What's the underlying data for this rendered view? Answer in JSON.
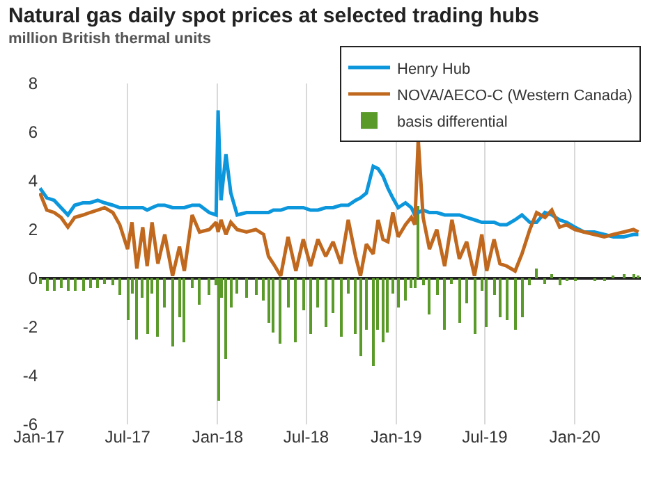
{
  "chart_data": {
    "type": "line",
    "title": "Natural gas daily spot prices at selected trading hubs",
    "subtitle": "million British thermal units",
    "x": [
      "2017-01-03",
      "2017-01-17",
      "2017-02-01",
      "2017-02-15",
      "2017-03-01",
      "2017-03-15",
      "2017-04-01",
      "2017-04-15",
      "2017-05-01",
      "2017-05-15",
      "2017-06-01",
      "2017-06-15",
      "2017-07-01",
      "2017-07-10",
      "2017-07-20",
      "2017-08-01",
      "2017-08-10",
      "2017-08-20",
      "2017-09-01",
      "2017-09-15",
      "2017-10-01",
      "2017-10-15",
      "2017-10-25",
      "2017-11-10",
      "2017-11-25",
      "2017-12-15",
      "2017-12-29",
      "2018-01-02",
      "2018-01-08",
      "2018-01-18",
      "2018-01-28",
      "2018-02-10",
      "2018-03-01",
      "2018-03-20",
      "2018-04-05",
      "2018-04-15",
      "2018-04-25",
      "2018-05-10",
      "2018-05-25",
      "2018-06-10",
      "2018-06-25",
      "2018-07-10",
      "2018-07-25",
      "2018-08-10",
      "2018-08-25",
      "2018-09-10",
      "2018-09-25",
      "2018-10-10",
      "2018-10-20",
      "2018-11-01",
      "2018-11-15",
      "2018-11-25",
      "2018-12-05",
      "2018-12-15",
      "2018-12-25",
      "2019-01-05",
      "2019-01-20",
      "2019-02-01",
      "2019-02-08",
      "2019-02-15",
      "2019-02-25",
      "2019-03-10",
      "2019-03-25",
      "2019-04-10",
      "2019-04-25",
      "2019-05-10",
      "2019-05-25",
      "2019-06-10",
      "2019-06-25",
      "2019-07-05",
      "2019-07-20",
      "2019-08-01",
      "2019-08-15",
      "2019-09-01",
      "2019-09-15",
      "2019-10-01",
      "2019-10-15",
      "2019-11-01",
      "2019-11-15",
      "2019-12-01",
      "2019-12-15",
      "2020-01-01",
      "2020-01-20",
      "2020-02-10",
      "2020-03-01",
      "2020-03-20",
      "2020-04-10",
      "2020-04-30",
      "2020-05-10"
    ],
    "series": [
      {
        "name": "Henry Hub",
        "color": "#0c96dc",
        "values": [
          3.7,
          3.3,
          3.2,
          2.9,
          2.6,
          3.0,
          3.1,
          3.1,
          3.2,
          3.1,
          3.0,
          2.9,
          2.9,
          2.9,
          2.9,
          2.9,
          2.8,
          2.9,
          3.0,
          3.0,
          2.9,
          2.9,
          2.9,
          3.0,
          3.0,
          2.7,
          2.6,
          6.9,
          3.2,
          5.1,
          3.5,
          2.6,
          2.7,
          2.7,
          2.7,
          2.7,
          2.8,
          2.8,
          2.9,
          2.9,
          2.9,
          2.8,
          2.8,
          2.9,
          2.9,
          3.0,
          3.0,
          3.2,
          3.3,
          3.5,
          4.6,
          4.5,
          4.2,
          3.7,
          3.3,
          2.9,
          3.1,
          2.9,
          2.6,
          2.7,
          2.8,
          2.7,
          2.7,
          2.6,
          2.6,
          2.6,
          2.5,
          2.4,
          2.3,
          2.3,
          2.3,
          2.2,
          2.2,
          2.4,
          2.6,
          2.3,
          2.3,
          2.7,
          2.6,
          2.4,
          2.3,
          2.1,
          1.9,
          1.9,
          1.8,
          1.7,
          1.7,
          1.8,
          1.8
        ]
      },
      {
        "name": "NOVA/AECO-C (Western Canada)",
        "color": "#c0691e",
        "values": [
          3.5,
          2.8,
          2.7,
          2.5,
          2.1,
          2.5,
          2.6,
          2.7,
          2.8,
          2.9,
          2.7,
          2.2,
          1.2,
          2.3,
          0.4,
          2.1,
          0.5,
          2.3,
          0.6,
          1.8,
          0.1,
          1.3,
          0.3,
          2.6,
          1.9,
          2.0,
          2.3,
          1.9,
          2.4,
          1.8,
          2.3,
          2.0,
          1.9,
          2.0,
          1.8,
          0.9,
          0.6,
          0.1,
          1.7,
          0.3,
          1.6,
          0.5,
          1.6,
          0.9,
          1.5,
          0.6,
          2.4,
          0.9,
          0.1,
          1.4,
          1.0,
          2.4,
          1.6,
          1.5,
          2.7,
          1.7,
          2.2,
          2.5,
          2.2,
          5.7,
          2.5,
          1.2,
          2.0,
          0.5,
          2.4,
          0.8,
          1.5,
          0.1,
          1.8,
          0.3,
          1.6,
          0.6,
          0.5,
          0.3,
          1.0,
          2.0,
          2.7,
          2.5,
          2.8,
          2.1,
          2.2,
          2.0,
          1.9,
          1.8,
          1.7,
          1.8,
          1.9,
          2.0,
          1.9
        ]
      },
      {
        "name": "basis differential",
        "type": "bar",
        "color": "#5a9a28",
        "values": [
          -0.2,
          -0.5,
          -0.5,
          -0.4,
          -0.5,
          -0.5,
          -0.5,
          -0.4,
          -0.4,
          -0.2,
          -0.3,
          -0.7,
          -1.7,
          -0.6,
          -2.5,
          -0.8,
          -2.3,
          -0.6,
          -2.4,
          -1.2,
          -2.8,
          -1.6,
          -2.6,
          -0.4,
          -1.1,
          -0.7,
          -0.3,
          -5.0,
          -0.8,
          -3.3,
          -1.2,
          -0.6,
          -0.8,
          -0.7,
          -0.9,
          -1.8,
          -2.2,
          -2.7,
          -1.2,
          -2.6,
          -1.3,
          -2.3,
          -1.2,
          -2.0,
          -1.4,
          -2.4,
          -0.6,
          -2.3,
          -3.2,
          -2.1,
          -3.6,
          -2.1,
          -2.6,
          -2.2,
          -0.6,
          -1.2,
          -0.9,
          -0.4,
          -0.4,
          3.0,
          -0.3,
          -1.5,
          -0.7,
          -2.1,
          -0.2,
          -1.8,
          -1.0,
          -2.3,
          -0.5,
          -2.0,
          -0.7,
          -1.6,
          -1.7,
          -2.1,
          -1.6,
          -0.3,
          0.4,
          -0.2,
          0.2,
          -0.3,
          -0.1,
          -0.1,
          0.0,
          -0.1,
          -0.1,
          0.1,
          0.2,
          0.2,
          0.1
        ]
      }
    ],
    "xlim": [
      "2017-01-01",
      "2020-05-15"
    ],
    "xticks": [
      {
        "value": "2017-01-01",
        "label": "Jan-17"
      },
      {
        "value": "2017-07-01",
        "label": "Jul-17"
      },
      {
        "value": "2018-01-01",
        "label": "Jan-18"
      },
      {
        "value": "2018-07-01",
        "label": "Jul-18"
      },
      {
        "value": "2019-01-01",
        "label": "Jan-19"
      },
      {
        "value": "2019-07-01",
        "label": "Jul-19"
      },
      {
        "value": "2020-01-01",
        "label": "Jan-20"
      }
    ],
    "ylim": [
      -6,
      8
    ],
    "yticks": [
      -6,
      -4,
      -2,
      0,
      2,
      4,
      6,
      8
    ],
    "grid": "x",
    "legend": "top right"
  }
}
